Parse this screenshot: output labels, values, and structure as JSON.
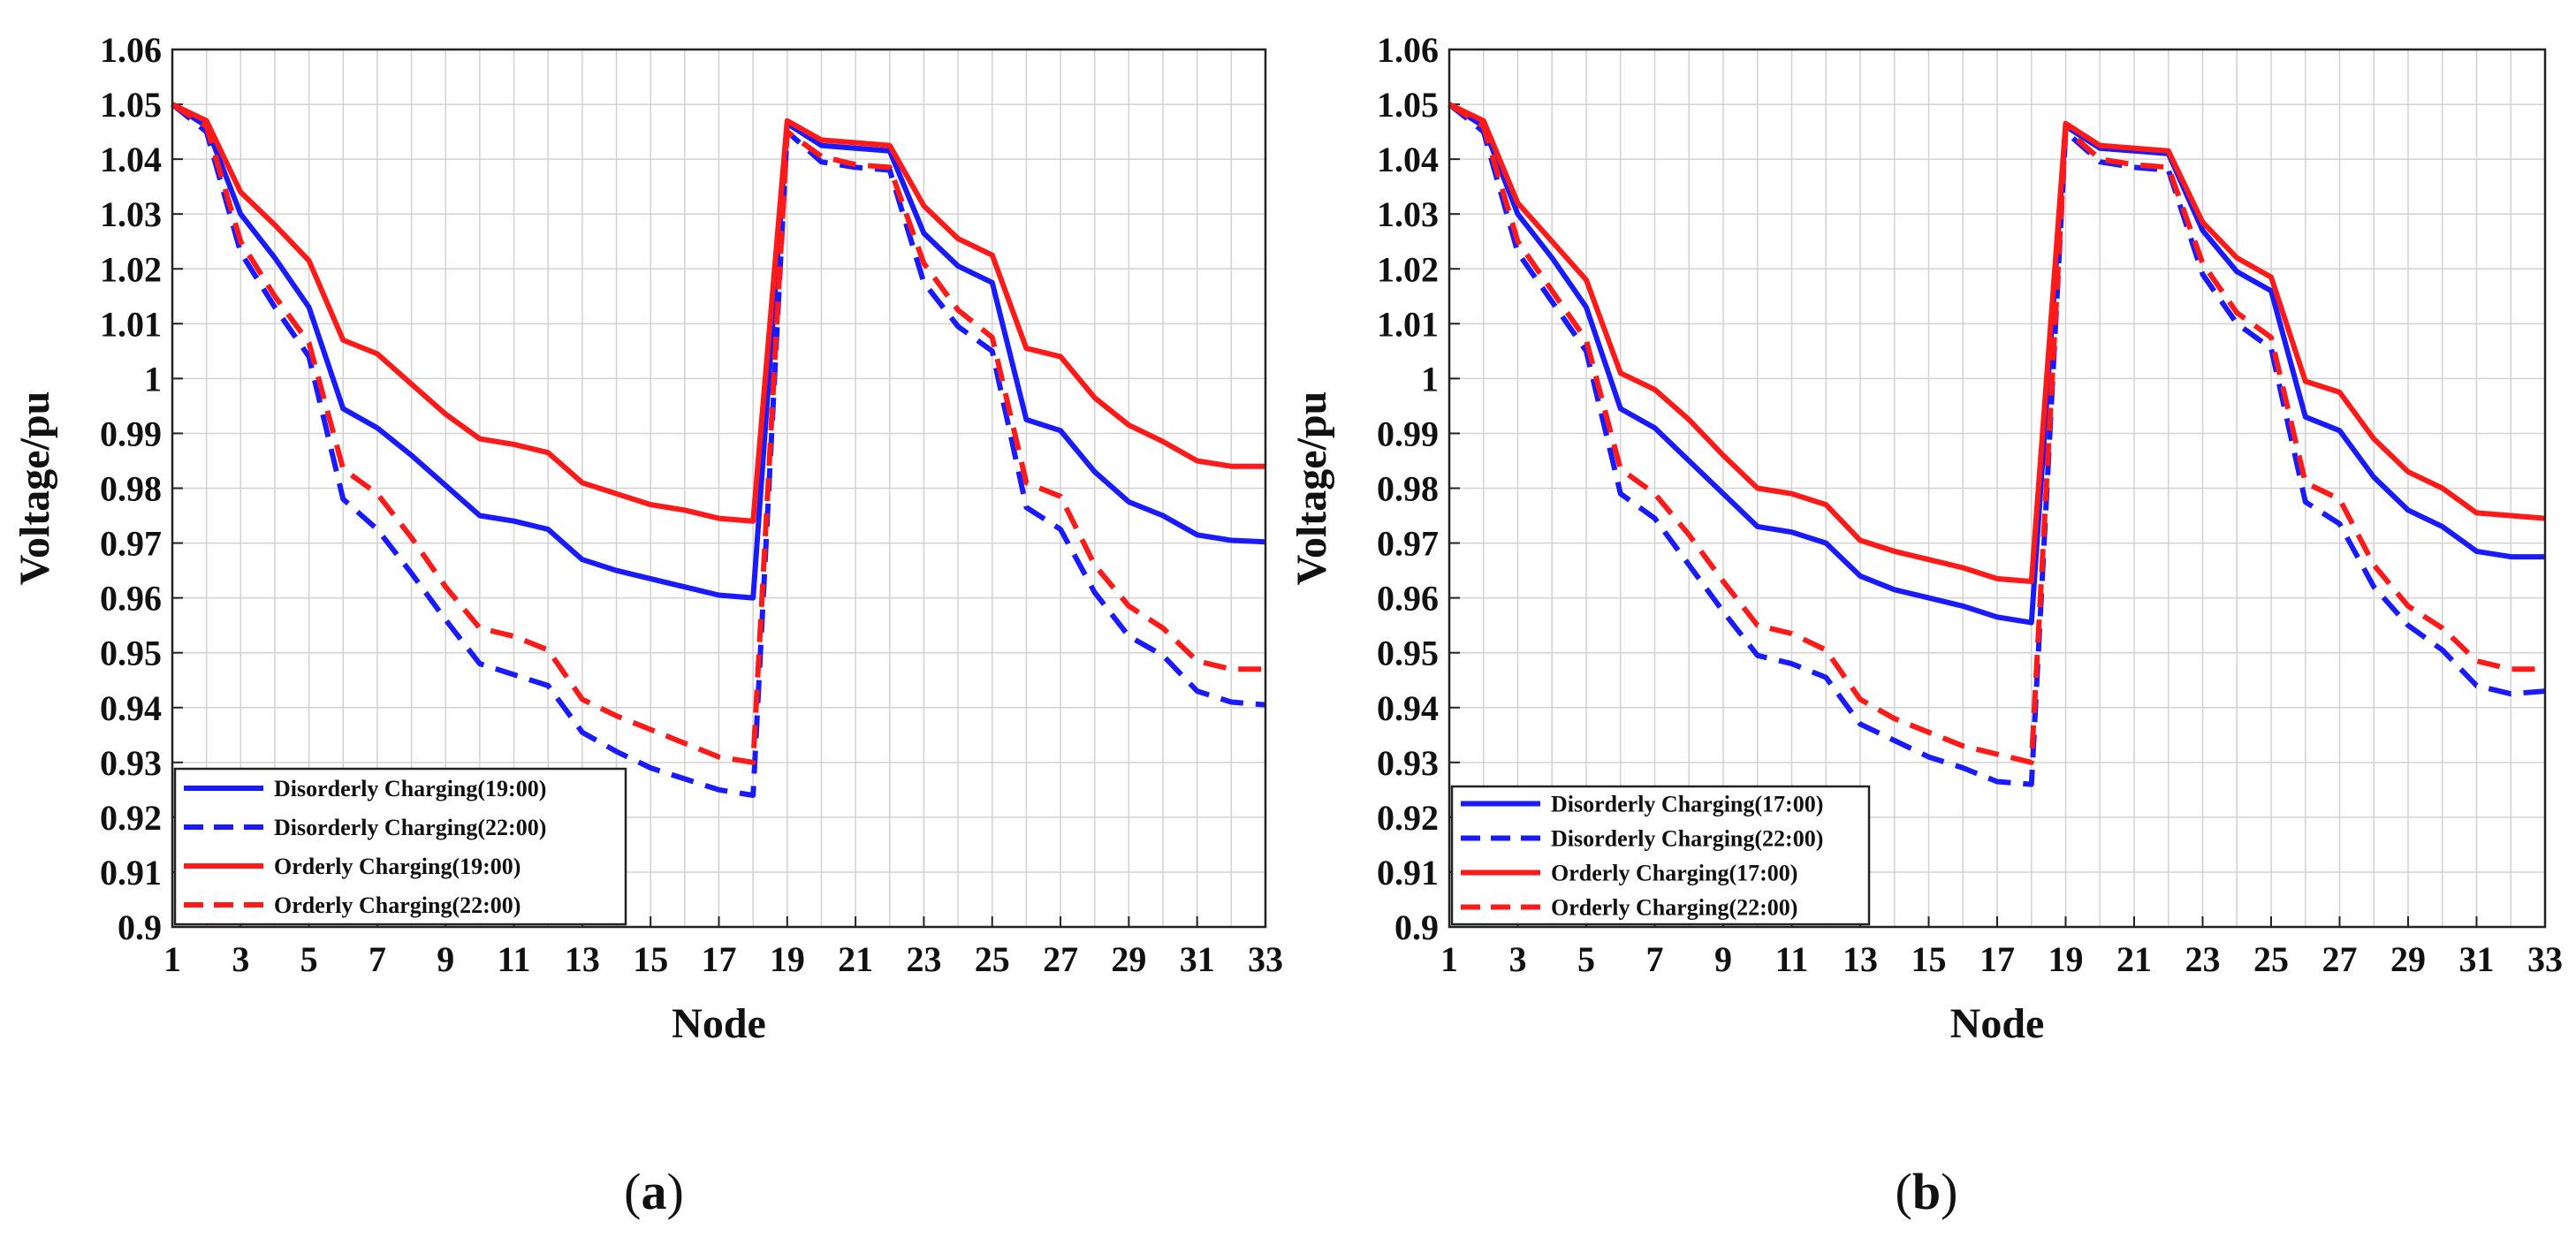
{
  "chart_data": [
    {
      "type": "line",
      "panel_label": "a",
      "xlabel": "Node",
      "ylabel": "Voltage/pu",
      "xlim": [
        1,
        33
      ],
      "ylim": [
        0.9,
        1.06
      ],
      "xticks": [
        1,
        3,
        5,
        7,
        9,
        11,
        13,
        15,
        17,
        19,
        21,
        23,
        25,
        27,
        29,
        31,
        33
      ],
      "yticks": [
        0.9,
        0.91,
        0.92,
        0.93,
        0.94,
        0.95,
        0.96,
        0.97,
        0.98,
        0.99,
        1,
        1.01,
        1.02,
        1.03,
        1.04,
        1.05,
        1.06
      ],
      "grid": true,
      "legend_position": "bottom-left",
      "series": [
        {
          "name": "Disorderly Charging(19:00)",
          "color": "#1a1aff",
          "style": "solid",
          "values": [
            1.05,
            1.046,
            1.03,
            1.022,
            1.013,
            0.9945,
            0.991,
            0.986,
            0.9805,
            0.975,
            0.974,
            0.9725,
            0.967,
            0.965,
            0.9635,
            0.962,
            0.9605,
            0.96,
            1.0465,
            1.0425,
            1.042,
            1.0415,
            1.0265,
            1.0205,
            1.0175,
            0.9925,
            0.9905,
            0.983,
            0.9775,
            0.975,
            0.9715,
            0.9705,
            0.9702
          ]
        },
        {
          "name": "Disorderly Charging(22:00)",
          "color": "#1a1aff",
          "style": "dashed",
          "values": [
            1.05,
            1.045,
            1.023,
            1.013,
            1.004,
            0.978,
            0.9725,
            0.9645,
            0.956,
            0.948,
            0.946,
            0.944,
            0.9355,
            0.932,
            0.929,
            0.927,
            0.925,
            0.924,
            1.045,
            1.0395,
            1.0385,
            1.038,
            1.0175,
            1.0095,
            1.005,
            0.9765,
            0.9725,
            0.961,
            0.953,
            0.9495,
            0.943,
            0.941,
            0.9405
          ]
        },
        {
          "name": "Orderly Charging(19:00)",
          "color": "#ff1a1a",
          "style": "solid",
          "values": [
            1.05,
            1.047,
            1.034,
            1.028,
            1.0215,
            1.007,
            1.0045,
            0.999,
            0.9935,
            0.989,
            0.988,
            0.9865,
            0.981,
            0.979,
            0.977,
            0.976,
            0.9745,
            0.974,
            1.047,
            1.0435,
            1.043,
            1.0425,
            1.0315,
            1.0255,
            1.0225,
            1.0055,
            1.004,
            0.9965,
            0.9915,
            0.9885,
            0.985,
            0.984,
            0.984
          ]
        },
        {
          "name": "Orderly Charging(22:00)",
          "color": "#ff1a1a",
          "style": "dashed",
          "values": [
            1.05,
            1.046,
            1.025,
            1.015,
            1.0065,
            0.9835,
            0.979,
            0.971,
            0.962,
            0.9545,
            0.953,
            0.9505,
            0.9415,
            0.9385,
            0.936,
            0.9335,
            0.931,
            0.93,
            1.045,
            1.0405,
            1.039,
            1.0385,
            1.021,
            1.0125,
            1.0075,
            0.981,
            0.9785,
            0.966,
            0.9585,
            0.9545,
            0.9485,
            0.947,
            0.947
          ]
        }
      ]
    },
    {
      "type": "line",
      "panel_label": "b",
      "xlabel": "Node",
      "ylabel": "Voltage/pu",
      "xlim": [
        1,
        33
      ],
      "ylim": [
        0.9,
        1.06
      ],
      "xticks": [
        1,
        3,
        5,
        7,
        9,
        11,
        13,
        15,
        17,
        19,
        21,
        23,
        25,
        27,
        29,
        31,
        33
      ],
      "yticks": [
        0.9,
        0.91,
        0.92,
        0.93,
        0.94,
        0.95,
        0.96,
        0.97,
        0.98,
        0.99,
        1,
        1.01,
        1.02,
        1.03,
        1.04,
        1.05,
        1.06
      ],
      "grid": true,
      "legend_position": "bottom-left",
      "series": [
        {
          "name": "Disorderly Charging(17:00)",
          "color": "#1a1aff",
          "style": "solid",
          "values": [
            1.05,
            1.046,
            1.03,
            1.022,
            1.013,
            0.9945,
            0.991,
            0.985,
            0.979,
            0.973,
            0.972,
            0.97,
            0.964,
            0.9615,
            0.96,
            0.9585,
            0.9565,
            0.9555,
            1.046,
            1.042,
            1.0415,
            1.041,
            1.027,
            1.0195,
            1.016,
            0.993,
            0.9905,
            0.982,
            0.976,
            0.973,
            0.9685,
            0.9675,
            0.9675
          ]
        },
        {
          "name": "Disorderly Charging(22:00)",
          "color": "#1a1aff",
          "style": "dashed",
          "values": [
            1.05,
            1.045,
            1.023,
            1.014,
            1.005,
            0.979,
            0.9745,
            0.966,
            0.9575,
            0.9495,
            0.948,
            0.9455,
            0.937,
            0.934,
            0.931,
            0.929,
            0.9265,
            0.926,
            1.045,
            1.0395,
            1.0385,
            1.038,
            1.019,
            1.01,
            1.0055,
            0.9775,
            0.9735,
            0.962,
            0.955,
            0.9505,
            0.944,
            0.9425,
            0.943
          ]
        },
        {
          "name": "Orderly Charging(17:00)",
          "color": "#ff1a1a",
          "style": "solid",
          "values": [
            1.05,
            1.047,
            1.032,
            1.025,
            1.018,
            1.001,
            0.998,
            0.9925,
            0.986,
            0.98,
            0.979,
            0.977,
            0.9705,
            0.9685,
            0.967,
            0.9655,
            0.9635,
            0.963,
            1.0465,
            1.0425,
            1.042,
            1.0415,
            1.0285,
            1.022,
            1.0185,
            0.9995,
            0.9975,
            0.989,
            0.983,
            0.98,
            0.9755,
            0.975,
            0.9745
          ]
        },
        {
          "name": "Orderly Charging(22:00)",
          "color": "#ff1a1a",
          "style": "dashed",
          "values": [
            1.05,
            1.046,
            1.025,
            1.016,
            1.007,
            0.9835,
            0.979,
            0.9715,
            0.963,
            0.955,
            0.9535,
            0.9505,
            0.9415,
            0.938,
            0.9355,
            0.933,
            0.9315,
            0.93,
            1.0455,
            1.04,
            1.039,
            1.0385,
            1.021,
            1.012,
            1.0075,
            0.981,
            0.978,
            0.966,
            0.9585,
            0.9545,
            0.9485,
            0.947,
            0.947
          ]
        }
      ]
    }
  ]
}
